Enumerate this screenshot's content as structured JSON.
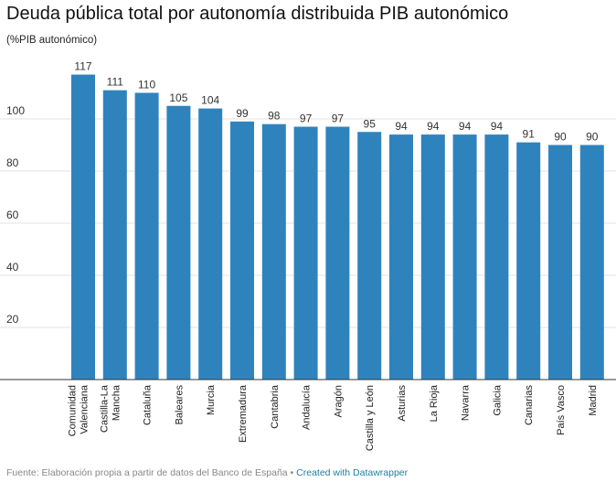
{
  "chart_data": {
    "type": "bar",
    "title": "Deuda pública total por autonomía distribuida PIB autonómico",
    "subtitle": "(%PIB autonómico)",
    "categories": [
      "Comunidad Valenciana",
      "Castilla-La Mancha",
      "Cataluña",
      "Baleares",
      "Murcia",
      "Extremadura",
      "Cantabria",
      "Andalucía",
      "Aragón",
      "Castilla y León",
      "Asturias",
      "La Rioja",
      "Navarra",
      "Galicia",
      "Canarias",
      "País Vasco",
      "Madrid"
    ],
    "values": [
      117,
      111,
      110,
      105,
      104,
      99,
      98,
      97,
      97,
      95,
      94,
      94,
      94,
      94,
      91,
      90,
      90
    ],
    "ylim": [
      0,
      120
    ],
    "yticks": [
      20,
      40,
      60,
      80,
      100
    ],
    "grid": true,
    "bar_color": "#2e83bd"
  },
  "footer": {
    "source": "Fuente: Elaboración propia a partir de datos del Banco de España",
    "separator": "•",
    "credit": "Created with Datawrapper"
  }
}
